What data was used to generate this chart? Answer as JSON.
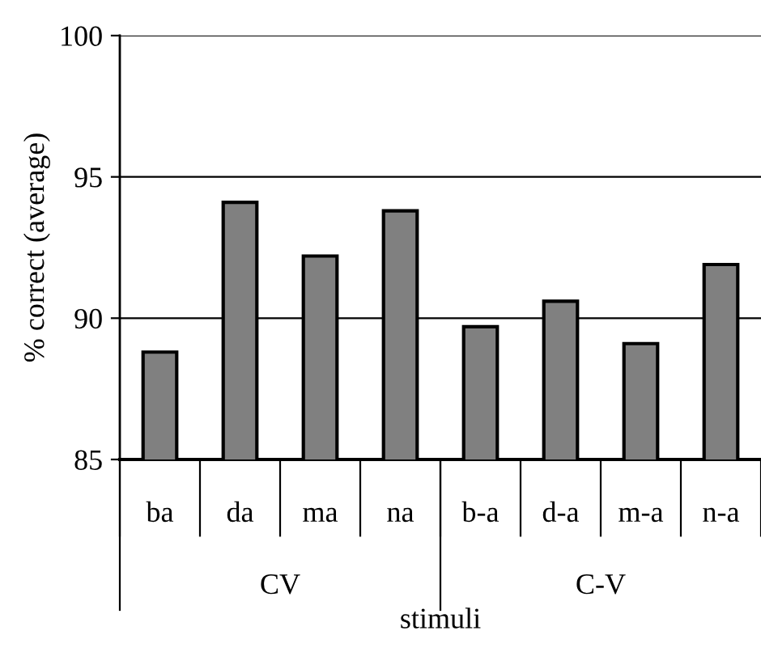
{
  "chart_data": {
    "type": "bar",
    "ylabel": "% correct (average)",
    "xlabel": "stimuli",
    "categories": [
      "ba",
      "da",
      "ma",
      "na",
      "b-a",
      "d-a",
      "m-a",
      "n-a"
    ],
    "values": [
      88.8,
      94.1,
      92.2,
      93.8,
      89.7,
      90.6,
      89.1,
      91.9
    ],
    "color": "#808080",
    "ylim": [
      85,
      100
    ],
    "yticks": [
      85,
      90,
      95,
      100
    ],
    "grid": "y",
    "annotations": [
      "CV",
      "C-V"
    ]
  }
}
